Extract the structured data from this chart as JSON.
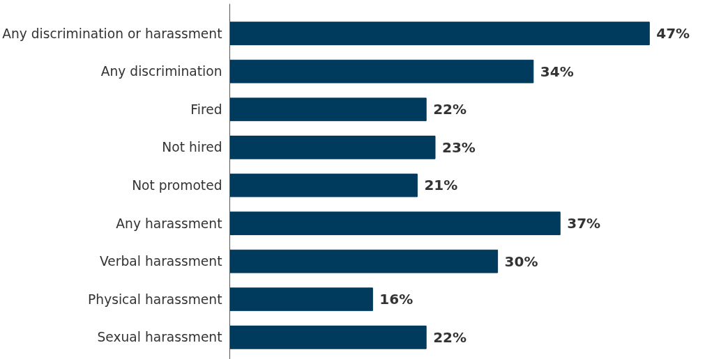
{
  "chart_data": {
    "type": "bar",
    "orientation": "horizontal",
    "categories": [
      "Any discrimination or harassment",
      "Any discrimination",
      "Fired",
      "Not hired",
      "Not promoted",
      "Any harassment",
      "Verbal harassment",
      "Physical harassment",
      "Sexual harassment"
    ],
    "values": [
      47,
      34,
      22,
      23,
      21,
      37,
      30,
      16,
      22
    ],
    "value_labels": [
      "47%",
      "34%",
      "22%",
      "23%",
      "21%",
      "37%",
      "30%",
      "16%",
      "22%"
    ],
    "color": "#003a5c",
    "grid": false,
    "tick_labels": "y"
  }
}
